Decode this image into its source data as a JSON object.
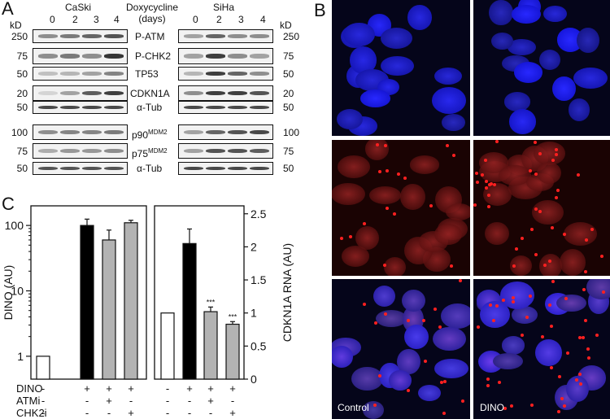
{
  "panels": {
    "a": "A",
    "b": "B",
    "c": "C"
  },
  "blots": {
    "cell_lines": [
      "CaSki",
      "SiHa"
    ],
    "timepoint_header": "Doxycycline\n(days)",
    "timepoint_header_lines": [
      "Doxycycline",
      "(days)"
    ],
    "lanes": [
      "0",
      "2",
      "3",
      "4"
    ],
    "kd_label": "kD",
    "rows": [
      {
        "protein": "P-ATM",
        "kd_left": "250",
        "kd_right": "250"
      },
      {
        "protein": "P-CHK2",
        "kd_left": "75",
        "kd_right": "75"
      },
      {
        "protein": "TP53",
        "kd_left": "50",
        "kd_right": "50"
      },
      {
        "protein": "CDKN1A",
        "kd_left": "20",
        "kd_right": "20"
      },
      {
        "protein": "α-Tub",
        "kd_left": "50",
        "kd_right": "50"
      },
      {
        "protein": "p90",
        "sup": "MDM2",
        "kd_left": "100",
        "kd_right": "100"
      },
      {
        "protein": "p75",
        "sup": "MDM2",
        "kd_left": "75",
        "kd_right": "75"
      },
      {
        "protein": "α-Tub",
        "kd_left": "50",
        "kd_right": "50"
      }
    ]
  },
  "microscopy": {
    "labels": [
      "Control",
      "DINO"
    ]
  },
  "chart_data": [
    {
      "type": "bar",
      "ylabel": "DINO (AU)",
      "yscale": "log",
      "yticks": [
        "1",
        "10",
        "100"
      ],
      "categories": [
        "-/-/-",
        "+/-/-",
        "+/+/-",
        "+/-/+"
      ],
      "values": [
        1,
        100,
        60,
        110
      ],
      "errors": [
        0,
        25,
        25,
        10
      ],
      "bar_colors": [
        "#ffffff",
        "#000000",
        "#b3b3b3",
        "#b3b3b3"
      ]
    },
    {
      "type": "bar",
      "ylabel": "CDKN1A RNA (AU)",
      "ylim": [
        0,
        2.5
      ],
      "yticks": [
        "0",
        "0.5",
        "1",
        "1.5",
        "2",
        "2.5"
      ],
      "categories": [
        "-/-/-",
        "+/-/-",
        "+/+/-",
        "+/-/+"
      ],
      "values": [
        1,
        2.05,
        1.02,
        0.83
      ],
      "errors": [
        0,
        0.22,
        0.07,
        0.04
      ],
      "significance": [
        "",
        "",
        "***",
        "***"
      ],
      "bar_colors": [
        "#ffffff",
        "#000000",
        "#b3b3b3",
        "#b3b3b3"
      ]
    }
  ],
  "treatments": {
    "rows": [
      {
        "label": "DINO",
        "left": [
          "-",
          "+",
          "+",
          "+"
        ],
        "right": [
          "-",
          "+",
          "+",
          "+"
        ]
      },
      {
        "label": "ATMi",
        "left": [
          "-",
          "-",
          "+",
          "-"
        ],
        "right": [
          "-",
          "-",
          "+",
          "-"
        ]
      },
      {
        "label": "CHK2i",
        "left": [
          "-",
          "-",
          "-",
          "+"
        ],
        "right": [
          "-",
          "-",
          "-",
          "+"
        ]
      }
    ]
  },
  "colors": {
    "nucleus_blue": "#2a2aff",
    "foci_red": "#ff2020",
    "bar_black": "#000000",
    "bar_gray": "#b3b3b3"
  }
}
